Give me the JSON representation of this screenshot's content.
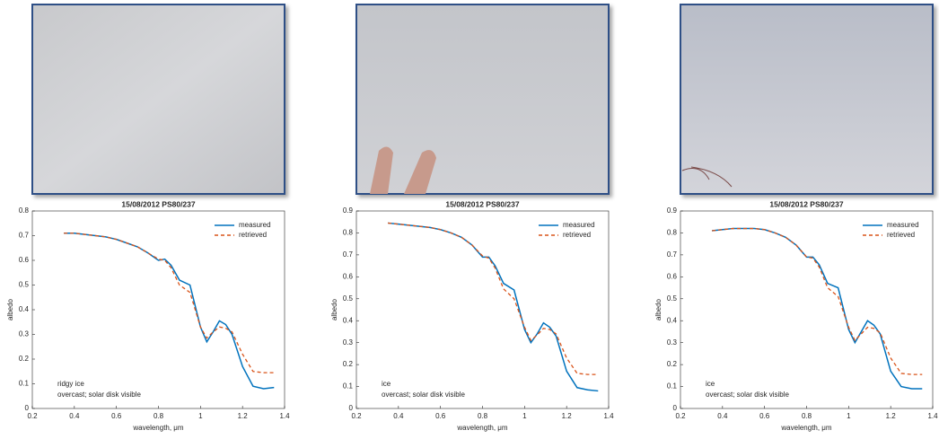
{
  "chart_data": [
    {
      "type": "line",
      "title": "15/08/2012 PS80/237",
      "xlabel": "wavelength, μm",
      "ylabel": "albedo",
      "annotations": [
        "ridgy ice",
        "overcast; solar disk visible"
      ],
      "x": [
        0.35,
        0.4,
        0.45,
        0.5,
        0.55,
        0.6,
        0.65,
        0.7,
        0.75,
        0.8,
        0.83,
        0.86,
        0.9,
        0.95,
        1.0,
        1.03,
        1.06,
        1.09,
        1.12,
        1.15,
        1.2,
        1.25,
        1.3,
        1.35
      ],
      "series": [
        {
          "name": "measured",
          "color": "#0072bd",
          "linestyle": "solid",
          "values": [
            0.71,
            0.71,
            0.705,
            0.7,
            0.695,
            0.685,
            0.67,
            0.655,
            0.63,
            0.6,
            0.605,
            0.58,
            0.52,
            0.5,
            0.33,
            0.27,
            0.31,
            0.355,
            0.34,
            0.3,
            0.17,
            0.09,
            0.08,
            0.085
          ]
        },
        {
          "name": "retrieved",
          "color": "#d95319",
          "linestyle": "dashed",
          "values": [
            0.71,
            0.71,
            0.705,
            0.7,
            0.695,
            0.685,
            0.67,
            0.655,
            0.63,
            0.605,
            0.6,
            0.57,
            0.5,
            0.47,
            0.33,
            0.285,
            0.31,
            0.33,
            0.325,
            0.31,
            0.22,
            0.15,
            0.145,
            0.145
          ]
        }
      ],
      "xlim": [
        0.2,
        1.4
      ],
      "xticks": [
        0.2,
        0.4,
        0.6,
        0.8,
        1,
        1.2,
        1.4
      ],
      "ylim": [
        0,
        0.8
      ],
      "yticks": [
        0,
        0.1,
        0.2,
        0.3,
        0.4,
        0.5,
        0.6,
        0.7,
        0.8
      ],
      "grid": false,
      "legend": "upper right"
    },
    {
      "type": "line",
      "title": "15/08/2012 PS80/237",
      "xlabel": "wavelength, μm",
      "ylabel": "albedo",
      "annotations": [
        "ice",
        "overcast; solar disk visible"
      ],
      "x": [
        0.35,
        0.4,
        0.45,
        0.5,
        0.55,
        0.6,
        0.65,
        0.7,
        0.75,
        0.8,
        0.83,
        0.86,
        0.9,
        0.95,
        1.0,
        1.03,
        1.06,
        1.09,
        1.12,
        1.15,
        1.2,
        1.25,
        1.3,
        1.35
      ],
      "series": [
        {
          "name": "measured",
          "color": "#0072bd",
          "linestyle": "solid",
          "values": [
            0.845,
            0.84,
            0.835,
            0.83,
            0.825,
            0.815,
            0.8,
            0.78,
            0.745,
            0.69,
            0.69,
            0.65,
            0.57,
            0.54,
            0.36,
            0.3,
            0.34,
            0.39,
            0.37,
            0.33,
            0.17,
            0.095,
            0.085,
            0.08
          ]
        },
        {
          "name": "retrieved",
          "color": "#d95319",
          "linestyle": "dashed",
          "values": [
            0.845,
            0.84,
            0.835,
            0.83,
            0.825,
            0.815,
            0.8,
            0.78,
            0.745,
            0.695,
            0.685,
            0.64,
            0.545,
            0.5,
            0.37,
            0.31,
            0.335,
            0.365,
            0.36,
            0.34,
            0.23,
            0.16,
            0.155,
            0.155
          ]
        }
      ],
      "xlim": [
        0.2,
        1.4
      ],
      "xticks": [
        0.2,
        0.4,
        0.6,
        0.8,
        1,
        1.2,
        1.4
      ],
      "ylim": [
        0,
        0.9
      ],
      "yticks": [
        0,
        0.1,
        0.2,
        0.3,
        0.4,
        0.5,
        0.6,
        0.7,
        0.8,
        0.9
      ],
      "grid": false,
      "legend": "upper right"
    },
    {
      "type": "line",
      "title": "15/08/2012 PS80/237",
      "xlabel": "wavelength, μm",
      "ylabel": "albedo",
      "annotations": [
        "ice",
        "overcast; solar disk visible"
      ],
      "x": [
        0.35,
        0.4,
        0.45,
        0.5,
        0.55,
        0.6,
        0.65,
        0.7,
        0.75,
        0.8,
        0.83,
        0.86,
        0.9,
        0.95,
        1.0,
        1.03,
        1.06,
        1.09,
        1.12,
        1.15,
        1.2,
        1.25,
        1.3,
        1.35
      ],
      "series": [
        {
          "name": "measured",
          "color": "#0072bd",
          "linestyle": "solid",
          "values": [
            0.81,
            0.815,
            0.82,
            0.82,
            0.82,
            0.815,
            0.8,
            0.78,
            0.745,
            0.69,
            0.69,
            0.655,
            0.57,
            0.55,
            0.36,
            0.3,
            0.35,
            0.4,
            0.38,
            0.34,
            0.17,
            0.1,
            0.09,
            0.09
          ]
        },
        {
          "name": "retrieved",
          "color": "#d95319",
          "linestyle": "dashed",
          "values": [
            0.81,
            0.815,
            0.82,
            0.82,
            0.82,
            0.815,
            0.8,
            0.78,
            0.745,
            0.69,
            0.685,
            0.645,
            0.55,
            0.51,
            0.37,
            0.31,
            0.34,
            0.37,
            0.365,
            0.345,
            0.23,
            0.16,
            0.155,
            0.155
          ]
        }
      ],
      "xlim": [
        0.2,
        1.4
      ],
      "xticks": [
        0.2,
        0.4,
        0.6,
        0.8,
        1,
        1.2,
        1.4
      ],
      "ylim": [
        0,
        0.9
      ],
      "yticks": [
        0,
        0.1,
        0.2,
        0.3,
        0.4,
        0.5,
        0.6,
        0.7,
        0.8,
        0.9
      ],
      "grid": false,
      "legend": "upper right"
    }
  ]
}
